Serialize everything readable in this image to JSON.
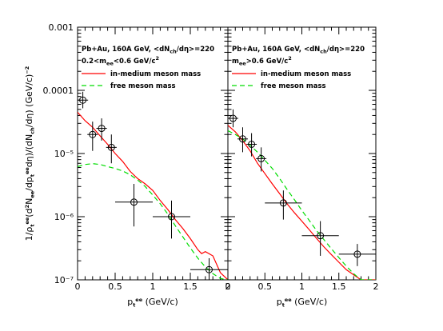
{
  "chart_data": {
    "type": "scatter",
    "yscale": "log",
    "ylim": [
      1e-07,
      0.001
    ],
    "y_tick_labels": [
      "10⁻⁷",
      "10⁻⁶",
      "10⁻⁵",
      "0.0001",
      "0.001"
    ],
    "ylabel": {
      "main": "1/ρ",
      "parts": [
        {
          "t": "1/ρ"
        },
        {
          "t": "t",
          "s": "sub"
        },
        {
          "t": "ee",
          "s": "sup"
        },
        {
          "t": "(d"
        },
        {
          "t": "2",
          "s": "sup"
        },
        {
          "t": "N"
        },
        {
          "t": "ee",
          "s": "sub"
        },
        {
          "t": "/dp"
        },
        {
          "t": "t",
          "s": "sub"
        },
        {
          "t": "ee",
          "s": "sup"
        },
        {
          "t": "dη)/(dN"
        },
        {
          "t": "ch",
          "s": "sub"
        },
        {
          "t": "/dη)   (GeV/c)"
        },
        {
          "t": "−2",
          "s": "sup"
        }
      ]
    },
    "panels": [
      {
        "xlim": [
          0,
          2
        ],
        "x_ticks": [
          "0",
          "0.5",
          "1",
          "1.5",
          "2"
        ],
        "xlabel_parts": [
          {
            "t": "p"
          },
          {
            "t": "t",
            "s": "sub"
          },
          {
            "t": "ee",
            "s": "sup"
          },
          {
            "t": " (GeV/c)"
          }
        ],
        "annotation": {
          "line1": [
            {
              "t": "Pb+Au, 160A GeV, <dN"
            },
            {
              "t": "ch",
              "s": "sub"
            },
            {
              "t": "/dη>=220"
            }
          ],
          "line2": [
            {
              "t": "0.2<m"
            },
            {
              "t": "ee",
              "s": "sub"
            },
            {
              "t": "<0.6 GeV/c"
            },
            {
              "t": "2",
              "s": "sup"
            }
          ]
        },
        "legend": [
          {
            "label": "in-medium meson mass",
            "color": "#ff0000",
            "dash": ""
          },
          {
            "label": "free meson mass",
            "color": "#00dd00",
            "dash": "6,4"
          }
        ],
        "points": [
          {
            "x": 0.07,
            "y": 7e-05,
            "xerr": 0.07,
            "ylo": 5.2e-05,
            "yhi": 9.5e-05
          },
          {
            "x": 0.2,
            "y": 2e-05,
            "xerr": 0.07,
            "ylo": 1.1e-05,
            "yhi": 3.2e-05
          },
          {
            "x": 0.32,
            "y": 2.5e-05,
            "xerr": 0.07,
            "ylo": 1.6e-05,
            "yhi": 3.6e-05
          },
          {
            "x": 0.45,
            "y": 1.25e-05,
            "xerr": 0.07,
            "ylo": 7e-06,
            "yhi": 2e-05
          },
          {
            "x": 0.75,
            "y": 1.7e-06,
            "xerr": 0.25,
            "ylo": 7e-07,
            "yhi": 3.3e-06
          },
          {
            "x": 1.25,
            "y": 1e-06,
            "xerr": 0.25,
            "ylo": 4.5e-07,
            "yhi": 1.8e-06
          },
          {
            "x": 1.75,
            "y": 1.45e-07,
            "xerr": 0.25,
            "ylo": 1e-07,
            "yhi": 2.2e-07
          }
        ],
        "series": [
          {
            "name": "in-medium meson mass",
            "color": "#ff0000",
            "dash": "",
            "x": [
              0,
              0.1,
              0.2,
              0.3,
              0.4,
              0.5,
              0.6,
              0.7,
              0.8,
              0.9,
              1.0,
              1.1,
              1.2,
              1.3,
              1.4,
              1.5,
              1.6,
              1.65,
              1.7,
              1.8,
              1.9,
              2.0
            ],
            "y": [
              4.5e-05,
              3.3e-05,
              2.6e-05,
              1.9e-05,
              1.4e-05,
              1e-05,
              7.5e-06,
              5.2e-06,
              4e-06,
              3.3e-06,
              2.6e-06,
              1.8e-06,
              1.3e-06,
              9e-07,
              6.5e-07,
              4.5e-07,
              3e-07,
              2.6e-07,
              2.8e-07,
              2.4e-07,
              1.3e-07,
              1e-07
            ]
          },
          {
            "name": "free meson mass",
            "color": "#00dd00",
            "dash": "6,4",
            "x": [
              0,
              0.1,
              0.2,
              0.3,
              0.4,
              0.5,
              0.6,
              0.7,
              0.8,
              0.9,
              1.0,
              1.1,
              1.2,
              1.3,
              1.4,
              1.5,
              1.6,
              1.7,
              1.8,
              1.9,
              2.0
            ],
            "y": [
              6.2e-06,
              6.7e-06,
              6.9e-06,
              6.7e-06,
              6.2e-06,
              5.8e-06,
              5.3e-06,
              4.6e-06,
              3.8e-06,
              3e-06,
              2.2e-06,
              1.6e-06,
              1.1e-06,
              7.2e-07,
              4.8e-07,
              3.2e-07,
              2.2e-07,
              1.6e-07,
              1.25e-07,
              1.05e-07,
              1e-07
            ]
          }
        ]
      },
      {
        "xlim": [
          0,
          2
        ],
        "x_ticks": [
          "0",
          "0.5",
          "1",
          "1.5",
          "2"
        ],
        "xlabel_parts": [
          {
            "t": "p"
          },
          {
            "t": "t",
            "s": "sub"
          },
          {
            "t": "ee",
            "s": "sup"
          },
          {
            "t": " (GeV/c)"
          }
        ],
        "annotation": {
          "line1": [
            {
              "t": "Pb+Au, 160A GeV, <dN"
            },
            {
              "t": "ch",
              "s": "sub"
            },
            {
              "t": "/dη>=220"
            }
          ],
          "line2": [
            {
              "t": "m"
            },
            {
              "t": "ee",
              "s": "sub"
            },
            {
              "t": ">0.6 GeV/c"
            },
            {
              "t": "2",
              "s": "sup"
            }
          ]
        },
        "legend": [
          {
            "label": "in-medium meson mass",
            "color": "#ff0000",
            "dash": ""
          },
          {
            "label": "free meson mass",
            "color": "#00dd00",
            "dash": "6,4"
          }
        ],
        "points": [
          {
            "x": 0.07,
            "y": 3.6e-05,
            "xerr": 0.07,
            "ylo": 2.6e-05,
            "yhi": 5e-05
          },
          {
            "x": 0.2,
            "y": 1.7e-05,
            "xerr": 0.07,
            "ylo": 1.05e-05,
            "yhi": 2.6e-05
          },
          {
            "x": 0.32,
            "y": 1.4e-05,
            "xerr": 0.07,
            "ylo": 9e-06,
            "yhi": 2.1e-05
          },
          {
            "x": 0.45,
            "y": 8.3e-06,
            "xerr": 0.07,
            "ylo": 5.2e-06,
            "yhi": 1.25e-05
          },
          {
            "x": 0.75,
            "y": 1.65e-06,
            "xerr": 0.25,
            "ylo": 9e-07,
            "yhi": 2.6e-06
          },
          {
            "x": 1.25,
            "y": 5e-07,
            "xerr": 0.25,
            "ylo": 2.4e-07,
            "yhi": 8.5e-07
          },
          {
            "x": 1.75,
            "y": 2.55e-07,
            "xerr": 0.25,
            "ylo": 1.65e-07,
            "yhi": 3.7e-07
          }
        ],
        "series": [
          {
            "name": "in-medium meson mass",
            "color": "#ff0000",
            "dash": "",
            "x": [
              0,
              0.1,
              0.2,
              0.3,
              0.4,
              0.5,
              0.6,
              0.7,
              0.8,
              0.9,
              1.0,
              1.1,
              1.2,
              1.3,
              1.4,
              1.5,
              1.6,
              1.7,
              1.8,
              1.9,
              2.0
            ],
            "y": [
              2.8e-05,
              2.2e-05,
              1.6e-05,
              1.1e-05,
              7e-06,
              4.8e-06,
              3.3e-06,
              2.3e-06,
              1.6e-06,
              1.15e-06,
              8.5e-07,
              6.2e-07,
              4.5e-07,
              3.3e-07,
              2.5e-07,
              1.9e-07,
              1.45e-07,
              1.2e-07,
              1e-07,
              1e-07,
              1e-07
            ]
          },
          {
            "name": "free meson mass",
            "color": "#00dd00",
            "dash": "6,4",
            "x": [
              0,
              0.1,
              0.2,
              0.3,
              0.4,
              0.5,
              0.6,
              0.7,
              0.8,
              0.9,
              1.0,
              1.1,
              1.2,
              1.3,
              1.4,
              1.5,
              1.6,
              1.7,
              1.8,
              1.9,
              2.0
            ],
            "y": [
              2.3e-05,
              2e-05,
              1.7e-05,
              1.35e-05,
              1.05e-05,
              7.8e-06,
              5.8e-06,
              4e-06,
              2.7e-06,
              1.85e-06,
              1.25e-06,
              8.7e-07,
              6e-07,
              4.3e-07,
              3.1e-07,
              2.25e-07,
              1.65e-07,
              1.25e-07,
              1e-07,
              1e-07,
              1e-07
            ]
          }
        ]
      }
    ]
  }
}
